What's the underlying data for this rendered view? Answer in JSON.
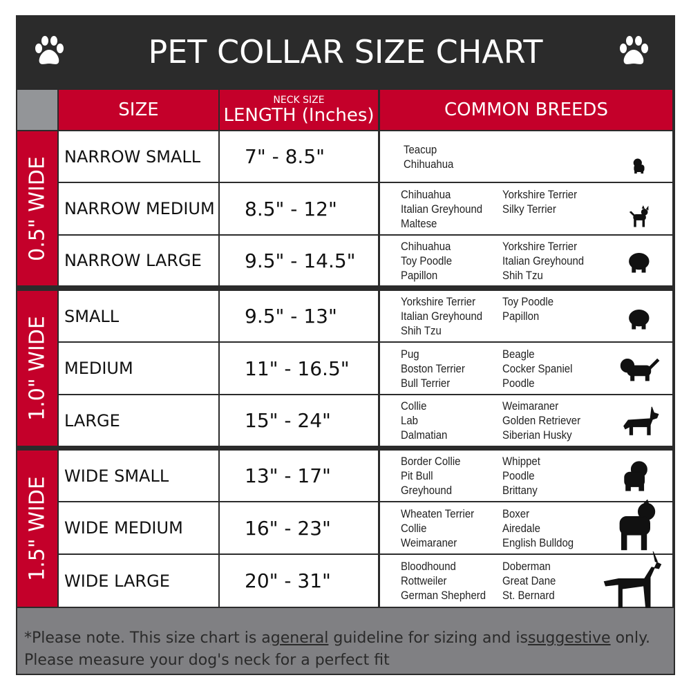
{
  "title": "PET COLLAR SIZE CHART",
  "headers": {
    "size": "SIZE",
    "length_small": "NECK SIZE",
    "length": "LENGTH (Inches)",
    "breeds": "COMMON BREEDS"
  },
  "groups": [
    "0.5\" WIDE",
    "1.0\" WIDE",
    "1.5\" WIDE"
  ],
  "rows": [
    {
      "size": "NARROW SMALL",
      "length": "7\" - 8.5\"",
      "col1": [
        "Teacup",
        "Chihuahua"
      ],
      "col2": []
    },
    {
      "size": "NARROW MEDIUM",
      "length": "8.5\" - 12\"",
      "col1": [
        "Chihuahua",
        "Italian Greyhound",
        "Maltese"
      ],
      "col2": [
        "Yorkshire Terrier",
        "Silky Terrier"
      ]
    },
    {
      "size": "NARROW LARGE",
      "length": "9.5\" - 14.5\"",
      "col1": [
        "Chihuahua",
        "Toy Poodle",
        "Papillon"
      ],
      "col2": [
        "Yorkshire Terrier",
        "Italian Greyhound",
        "Shih Tzu"
      ]
    },
    {
      "size": "SMALL",
      "length": "9.5\" - 13\"",
      "col1": [
        "Yorkshire Terrier",
        "Italian Greyhound",
        "Shih Tzu"
      ],
      "col2": [
        "Toy Poodle",
        "Papillon"
      ]
    },
    {
      "size": "MEDIUM",
      "length": "11\" - 16.5\"",
      "col1": [
        "Pug",
        "Boston Terrier",
        "Bull Terrier"
      ],
      "col2": [
        "Beagle",
        "Cocker Spaniel",
        "Poodle"
      ]
    },
    {
      "size": "LARGE",
      "length": "15\" - 24\"",
      "col1": [
        "Collie",
        "Lab",
        "Dalmatian"
      ],
      "col2": [
        "Weimaraner",
        "Golden Retriever",
        "Siberian Husky"
      ]
    },
    {
      "size": "WIDE SMALL",
      "length": "13\" - 17\"",
      "col1": [
        "Border Collie",
        "Pit Bull",
        "Greyhound"
      ],
      "col2": [
        "Whippet",
        "Poodle",
        "Brittany"
      ]
    },
    {
      "size": "WIDE MEDIUM",
      "length": "16\" - 23\"",
      "col1": [
        "Wheaten Terrier",
        "Collie",
        "Weimaraner"
      ],
      "col2": [
        "Boxer",
        "Airedale",
        "English Bulldog"
      ]
    },
    {
      "size": "WIDE LARGE",
      "length": "20\" - 31\"",
      "col1": [
        "Bloodhound",
        "Rottweiler",
        "German Shepherd"
      ],
      "col2": [
        "Doberman",
        "Great Dane",
        "St. Bernard"
      ]
    }
  ],
  "footer": {
    "p1": "*Please note. This size chart is a",
    "u1": "general",
    "p2": " guideline for sizing and is",
    "u2": "suggestive",
    "p3": " only.",
    "line2": "Please measure your dog's neck for a perfect fit"
  },
  "colors": {
    "red": "#c4002a",
    "dark": "#2b2b2b",
    "gray": "#808083"
  }
}
